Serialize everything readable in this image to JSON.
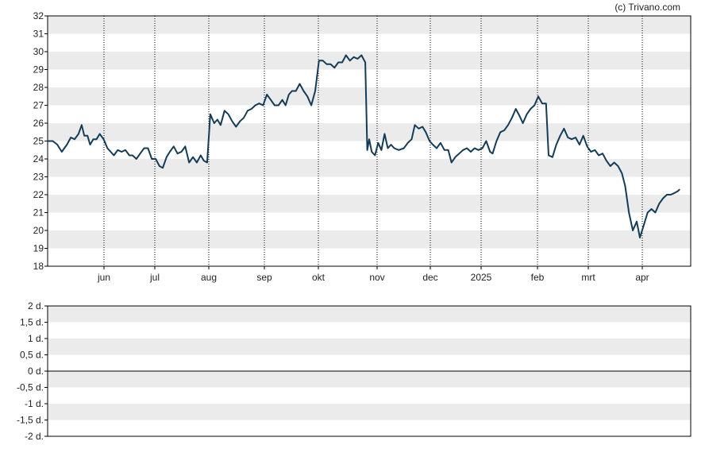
{
  "credit": "(c) Trivano.com",
  "colors": {
    "line": "#143c58",
    "band": "#ebebeb",
    "axis": "#000000",
    "grid": "#000000"
  },
  "chart_data": [
    {
      "type": "line",
      "title": "",
      "xlabel": "",
      "ylabel": "",
      "ylim": [
        18,
        32
      ],
      "yticks": [
        "18",
        "19",
        "20",
        "21",
        "22",
        "23",
        "24",
        "25",
        "26",
        "27",
        "28",
        "29",
        "30",
        "31",
        "32"
      ],
      "xticks": [
        "jun",
        "jul",
        "aug",
        "sep",
        "okt",
        "nov",
        "dec",
        "2025",
        "feb",
        "mrt",
        "apr"
      ],
      "grid": "vertical dotted at month starts, alternating horizontal bands",
      "series": [
        {
          "name": "",
          "points": [
            [
              0,
              25.0
            ],
            [
              0.8,
              25.0
            ],
            [
              1.5,
              24.8
            ],
            [
              2.2,
              24.4
            ],
            [
              3.0,
              24.8
            ],
            [
              3.6,
              25.2
            ],
            [
              4.2,
              25.1
            ],
            [
              4.8,
              25.4
            ],
            [
              5.3,
              25.9
            ],
            [
              5.7,
              25.3
            ],
            [
              6.2,
              25.3
            ],
            [
              6.6,
              24.8
            ],
            [
              7.1,
              25.1
            ],
            [
              7.6,
              25.1
            ],
            [
              8.1,
              25.4
            ],
            [
              8.7,
              25.1
            ],
            [
              9.3,
              24.6
            ],
            [
              9.8,
              24.4
            ],
            [
              10.3,
              24.2
            ],
            [
              10.9,
              24.5
            ],
            [
              11.5,
              24.4
            ],
            [
              12.1,
              24.5
            ],
            [
              12.7,
              24.2
            ],
            [
              13.2,
              24.2
            ],
            [
              13.8,
              24.0
            ],
            [
              14.4,
              24.3
            ],
            [
              15.0,
              24.6
            ],
            [
              15.6,
              24.6
            ],
            [
              16.2,
              24.0
            ],
            [
              16.8,
              24.0
            ],
            [
              17.4,
              23.6
            ],
            [
              17.9,
              23.5
            ],
            [
              18.5,
              24.1
            ],
            [
              19.0,
              24.4
            ],
            [
              19.6,
              24.7
            ],
            [
              20.2,
              24.3
            ],
            [
              20.8,
              24.4
            ],
            [
              21.4,
              24.7
            ],
            [
              22.0,
              23.8
            ],
            [
              22.6,
              24.1
            ],
            [
              23.2,
              23.8
            ],
            [
              23.8,
              24.2
            ],
            [
              24.3,
              23.9
            ],
            [
              24.8,
              23.8
            ],
            [
              25.3,
              26.5
            ],
            [
              25.9,
              26.0
            ],
            [
              26.4,
              26.2
            ],
            [
              26.9,
              25.9
            ],
            [
              27.5,
              26.7
            ],
            [
              28.1,
              26.5
            ],
            [
              28.7,
              26.1
            ],
            [
              29.3,
              25.8
            ],
            [
              29.9,
              26.1
            ],
            [
              30.5,
              26.3
            ],
            [
              31.1,
              26.7
            ],
            [
              31.7,
              26.8
            ],
            [
              32.3,
              27.0
            ],
            [
              32.9,
              27.1
            ],
            [
              33.5,
              27.0
            ],
            [
              34.1,
              27.6
            ],
            [
              34.7,
              27.3
            ],
            [
              35.3,
              27.0
            ],
            [
              35.9,
              27.0
            ],
            [
              36.5,
              27.3
            ],
            [
              37.0,
              27.0
            ],
            [
              37.5,
              27.6
            ],
            [
              38.0,
              27.8
            ],
            [
              38.6,
              27.8
            ],
            [
              39.2,
              28.2
            ],
            [
              39.8,
              27.8
            ],
            [
              40.4,
              27.5
            ],
            [
              41.0,
              27.0
            ],
            [
              41.6,
              27.8
            ],
            [
              42.2,
              29.5
            ],
            [
              42.8,
              29.5
            ],
            [
              43.4,
              29.3
            ],
            [
              44.0,
              29.3
            ],
            [
              44.6,
              29.1
            ],
            [
              45.2,
              29.4
            ],
            [
              45.8,
              29.4
            ],
            [
              46.4,
              29.8
            ],
            [
              47.0,
              29.5
            ],
            [
              47.6,
              29.7
            ],
            [
              48.2,
              29.6
            ],
            [
              48.8,
              29.8
            ],
            [
              49.4,
              29.4
            ],
            [
              49.7,
              24.5
            ],
            [
              50.0,
              25.1
            ],
            [
              50.4,
              24.4
            ],
            [
              50.9,
              24.2
            ],
            [
              51.4,
              24.9
            ],
            [
              51.9,
              24.5
            ],
            [
              52.4,
              25.4
            ],
            [
              52.9,
              24.6
            ],
            [
              53.4,
              24.8
            ],
            [
              53.9,
              24.6
            ],
            [
              54.6,
              24.5
            ],
            [
              55.4,
              24.6
            ],
            [
              56.0,
              24.9
            ],
            [
              56.6,
              25.1
            ],
            [
              57.1,
              25.9
            ],
            [
              57.7,
              25.7
            ],
            [
              58.3,
              25.8
            ],
            [
              58.8,
              25.5
            ],
            [
              59.4,
              25.0
            ],
            [
              59.9,
              24.8
            ],
            [
              60.5,
              24.6
            ],
            [
              61.1,
              24.9
            ],
            [
              61.7,
              24.5
            ],
            [
              62.3,
              24.5
            ],
            [
              62.8,
              23.8
            ],
            [
              63.4,
              24.1
            ],
            [
              64.0,
              24.3
            ],
            [
              64.6,
              24.5
            ],
            [
              65.2,
              24.6
            ],
            [
              65.8,
              24.4
            ],
            [
              66.4,
              24.6
            ],
            [
              67.0,
              24.5
            ],
            [
              67.6,
              24.6
            ],
            [
              68.2,
              25.0
            ],
            [
              68.8,
              24.4
            ],
            [
              69.2,
              24.3
            ],
            [
              69.8,
              25.0
            ],
            [
              70.4,
              25.5
            ],
            [
              71.0,
              25.6
            ],
            [
              71.6,
              25.9
            ],
            [
              72.2,
              26.3
            ],
            [
              72.8,
              26.8
            ],
            [
              73.4,
              26.4
            ],
            [
              73.9,
              26.0
            ],
            [
              74.5,
              26.5
            ],
            [
              75.1,
              26.8
            ],
            [
              75.7,
              27.0
            ],
            [
              76.3,
              27.5
            ],
            [
              76.9,
              27.1
            ],
            [
              77.5,
              27.1
            ],
            [
              77.9,
              24.2
            ],
            [
              78.5,
              24.1
            ],
            [
              79.1,
              24.8
            ],
            [
              79.7,
              25.3
            ],
            [
              80.3,
              25.7
            ],
            [
              80.9,
              25.2
            ],
            [
              81.5,
              25.1
            ],
            [
              82.1,
              25.2
            ],
            [
              82.7,
              24.8
            ],
            [
              83.3,
              25.3
            ],
            [
              83.9,
              24.7
            ],
            [
              84.5,
              24.4
            ],
            [
              85.1,
              24.5
            ],
            [
              85.7,
              24.2
            ],
            [
              86.3,
              24.3
            ],
            [
              86.9,
              23.9
            ],
            [
              87.5,
              23.6
            ],
            [
              88.1,
              23.8
            ],
            [
              88.7,
              23.6
            ],
            [
              89.3,
              23.2
            ],
            [
              89.8,
              22.5
            ],
            [
              90.4,
              21.0
            ],
            [
              91.0,
              20.0
            ],
            [
              91.6,
              20.5
            ],
            [
              92.1,
              19.6
            ],
            [
              92.7,
              20.3
            ],
            [
              93.3,
              21.0
            ],
            [
              93.9,
              21.2
            ],
            [
              94.5,
              21.0
            ],
            [
              95.1,
              21.5
            ],
            [
              95.7,
              21.8
            ],
            [
              96.3,
              22.0
            ],
            [
              96.9,
              22.0
            ],
            [
              97.5,
              22.1
            ],
            [
              98.0,
              22.2
            ],
            [
              98.3,
              22.3
            ]
          ]
        }
      ]
    },
    {
      "type": "line",
      "title": "",
      "ylim": [
        -2,
        2
      ],
      "yticks": [
        "2 d.",
        "1,5 d.",
        "1 d.",
        "0,5 d.",
        "0 d.",
        "-0,5 d.",
        "-1 d.",
        "-1,5 d.",
        "-2 d."
      ],
      "baseline": 0,
      "series": []
    }
  ]
}
